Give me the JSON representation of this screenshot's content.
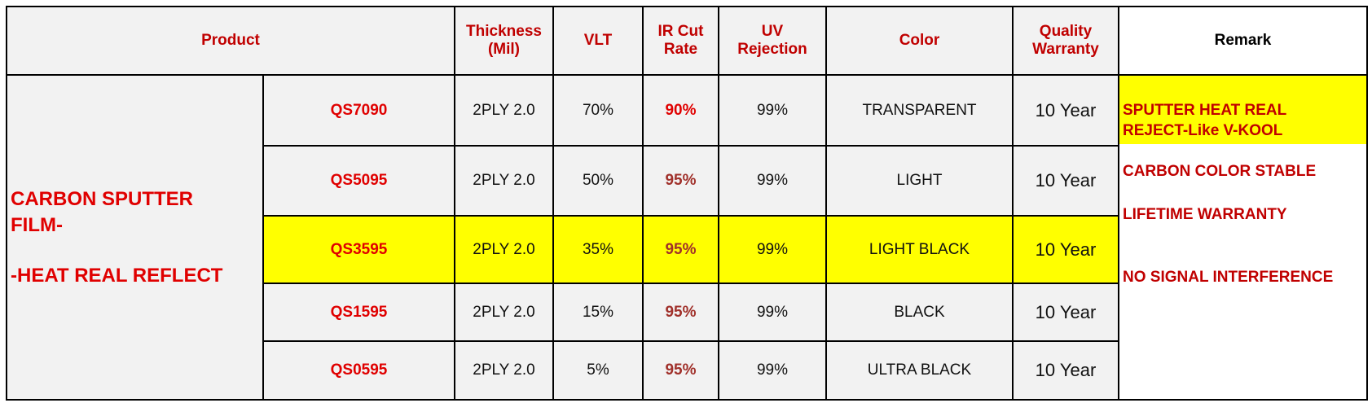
{
  "header": {
    "product": "Product",
    "columns": [
      "Thickness\n(Mil)",
      "VLT",
      "IR Cut\nRate",
      "UV\nRejection",
      "Color",
      "Quality\nWarranty",
      "Remark"
    ]
  },
  "product_lines": [
    "CARBON SPUTTER\nFILM-",
    "-HEAT REAL  REFLECT"
  ],
  "rows": [
    [
      "QS7090",
      "2PLY 2.0",
      "70%",
      "90%",
      "99%",
      "TRANSPARENT",
      "10 Year"
    ],
    [
      "QS5095",
      "2PLY 2.0",
      "50%",
      "95%",
      "99%",
      "LIGHT",
      "10 Year"
    ],
    [
      "QS3595",
      "2PLY 2.0",
      "35%",
      "95%",
      "99%",
      "LIGHT BLACK",
      "10 Year"
    ],
    [
      "QS1595",
      "2PLY 2.0",
      "15%",
      "95%",
      "99%",
      "BLACK",
      "10 Year"
    ],
    [
      "QS0595",
      "2PLY 2.0",
      "5%",
      "95%",
      "99%",
      "ULTRA BLACK",
      "10 Year"
    ]
  ],
  "remarks": [
    "SPUTTER HEAT REAL\nREJECT-Like V-KOOL",
    "CARBON COLOR STABLE",
    "LIFETIME WARRANTY",
    "NO SIGNAL INTERFERENCE"
  ]
}
